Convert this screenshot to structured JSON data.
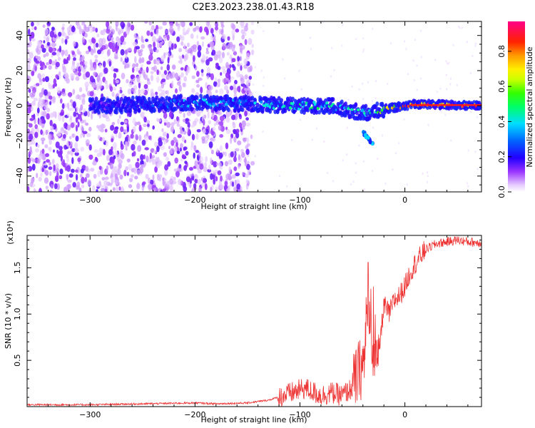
{
  "title": "C2E3.2023.238.01.43.R18",
  "chart_data": [
    {
      "type": "heatmap",
      "xlabel": "Height of straight line (km)",
      "ylabel": "Frequency (Hz)",
      "xlim": [
        -360,
        73
      ],
      "ylim": [
        -49,
        48
      ],
      "xticks": [
        -300,
        -200,
        -100,
        0
      ],
      "yticks": [
        40,
        20,
        0,
        -20,
        -40
      ],
      "colorbar": {
        "label": "Normalized spectral amplitude",
        "range": [
          0.0,
          0.97
        ],
        "ticks": [
          "0.0",
          "0.2",
          "0.4",
          "0.6",
          "0.8"
        ],
        "colormap": "rainbow (white-violet-blue-cyan-green-yellow-orange-red-magenta)"
      },
      "ridge": [
        {
          "x": -290,
          "f": 0,
          "amp": 0.15
        },
        {
          "x": -230,
          "f": 1,
          "amp": 0.28
        },
        {
          "x": -200,
          "f": 2,
          "amp": 0.4
        },
        {
          "x": -150,
          "f": 1,
          "amp": 0.35
        },
        {
          "x": -100,
          "f": 0,
          "amp": 0.48
        },
        {
          "x": -70,
          "f": 0,
          "amp": 0.5
        },
        {
          "x": -50,
          "f": -3,
          "amp": 0.45
        },
        {
          "x": -35,
          "f": -4,
          "amp": 0.4
        },
        {
          "x": -20,
          "f": -2,
          "amp": 0.65
        },
        {
          "x": 0,
          "f": 0,
          "amp": 0.8
        },
        {
          "x": 10,
          "f": 1,
          "amp": 0.95
        },
        {
          "x": 73,
          "f": 0,
          "amp": 0.85
        }
      ],
      "secondary_feature": {
        "x": [
          -40,
          -30
        ],
        "f": [
          -15,
          -22
        ],
        "amp": 0.35
      },
      "grid": false
    },
    {
      "type": "line",
      "xlabel": "Height of straight line (km)",
      "ylabel": "SNR (10 * v/v)",
      "yscale_note": "(x10⁴)",
      "xlim": [
        -360,
        73
      ],
      "ylim": [
        0,
        1.85
      ],
      "xticks": [
        -300,
        -200,
        -100,
        0
      ],
      "yticks": [
        "0.5",
        "1.0",
        "1.5"
      ],
      "series": [
        {
          "color": "#ee3333",
          "x": [
            -360,
            -300,
            -250,
            -200,
            -180,
            -150,
            -130,
            -115,
            -105,
            -95,
            -90,
            -80,
            -70,
            -60,
            -50,
            -45,
            -40,
            -38,
            -35,
            -32,
            -30,
            -28,
            -25,
            -20,
            -15,
            -10,
            -5,
            0,
            5,
            10,
            20,
            30,
            40,
            50,
            60,
            73
          ],
          "y": [
            0.02,
            0.02,
            0.03,
            0.04,
            0.03,
            0.04,
            0.07,
            0.12,
            0.16,
            0.2,
            0.17,
            0.12,
            0.15,
            0.12,
            0.2,
            0.35,
            0.45,
            0.6,
            1.35,
            0.55,
            0.45,
            0.7,
            0.55,
            1.1,
            1.0,
            1.15,
            1.2,
            1.3,
            1.45,
            1.55,
            1.7,
            1.76,
            1.78,
            1.8,
            1.78,
            1.77
          ]
        }
      ]
    }
  ]
}
